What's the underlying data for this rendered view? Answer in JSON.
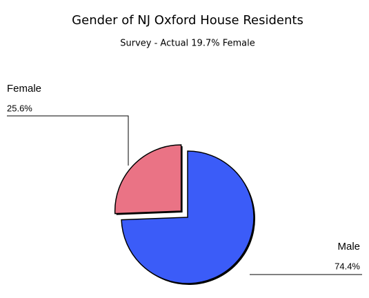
{
  "chart_data": {
    "type": "pie",
    "title": "Gender of NJ Oxford House Residents",
    "subtitle": "Survey - Actual 19.7% Female",
    "categories": [
      "Male",
      "Female"
    ],
    "values": [
      74.4,
      25.6
    ],
    "value_labels": [
      "74.4%",
      "25.6%"
    ],
    "colors": [
      "#3b5cf8",
      "#ea7385"
    ]
  }
}
